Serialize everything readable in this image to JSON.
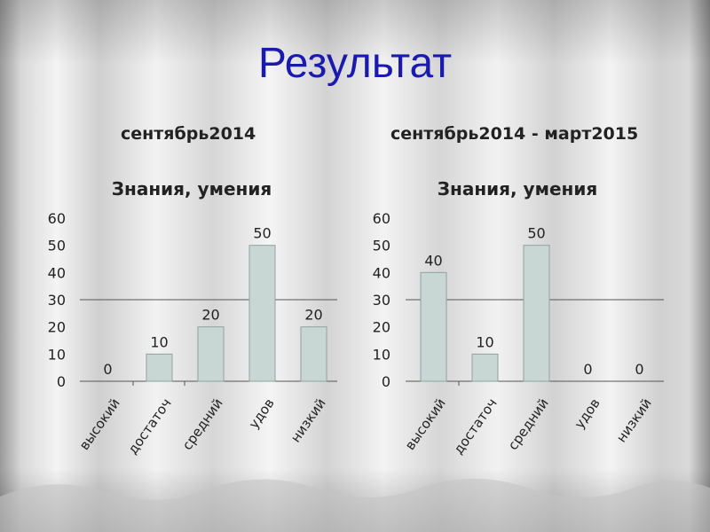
{
  "slide": {
    "title": "Результат",
    "subtitle_left": "сентябрь2014",
    "subtitle_right": "сентябрь2014 - март2015"
  },
  "colors": {
    "bar_fill": "#c8d6d4",
    "bar_stroke": "#8fa3a1",
    "title_color": "#1a1ab0"
  },
  "chart_data": [
    {
      "type": "bar",
      "title": "Знания, умения",
      "categories": [
        "высокий",
        "достаточ",
        "средний",
        "удов",
        "низкий"
      ],
      "values": [
        0,
        10,
        20,
        50,
        20
      ],
      "ylim": [
        0,
        60
      ],
      "yticks": [
        0,
        10,
        20,
        30,
        40,
        50,
        60
      ],
      "gridline_at": 30,
      "grid": false,
      "legend": "none"
    },
    {
      "type": "bar",
      "title": "Знания, умения",
      "categories": [
        "высокий",
        "достаточ",
        "средний",
        "удов",
        "низкий"
      ],
      "values": [
        40,
        10,
        50,
        0,
        0
      ],
      "ylim": [
        0,
        60
      ],
      "yticks": [
        0,
        10,
        20,
        30,
        40,
        50,
        60
      ],
      "gridline_at": 30,
      "grid": false,
      "legend": "none"
    }
  ]
}
